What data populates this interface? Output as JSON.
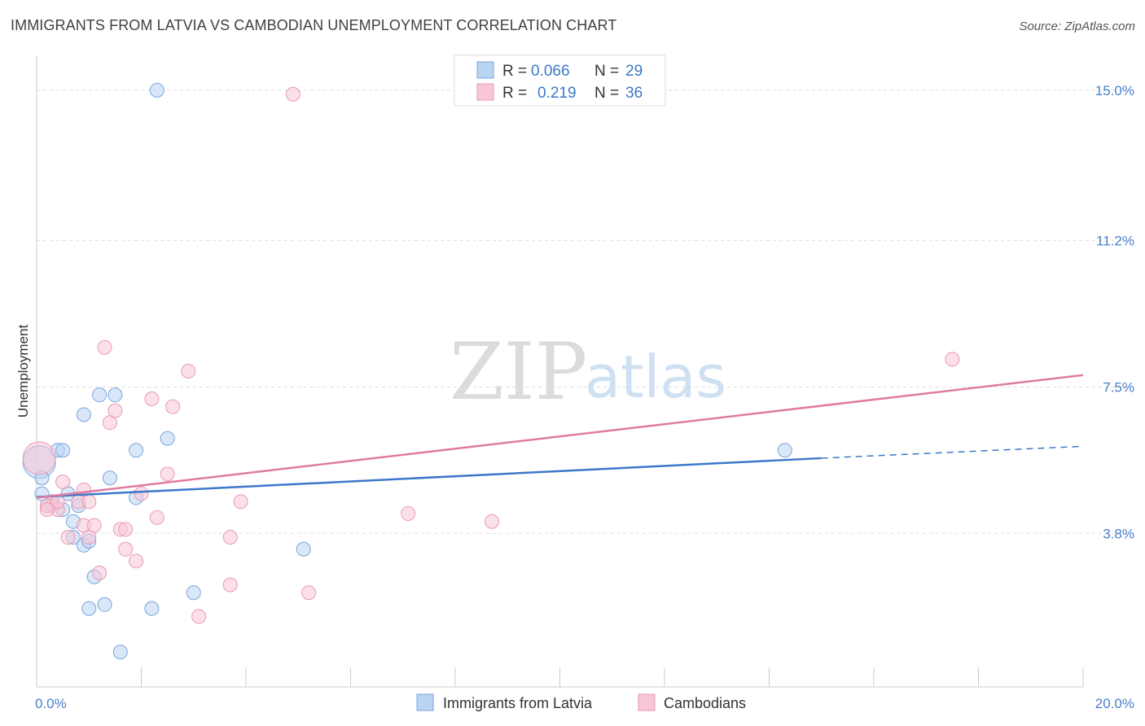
{
  "title": "IMMIGRANTS FROM LATVIA VS CAMBODIAN UNEMPLOYMENT CORRELATION CHART",
  "source": "Source: ZipAtlas.com",
  "watermark": {
    "zip": "ZIP",
    "atlas": "atlas"
  },
  "colors": {
    "blue_fill": "#b9d3f3",
    "blue_stroke": "#7aa6dc",
    "blue_line": "#3b78c9",
    "pink_fill": "#f8c7d7",
    "pink_stroke": "#e99ab4",
    "pink_line": "#e07aa1",
    "tick_text": "#4a7fcc",
    "grid": "#dddddd"
  },
  "chart_data": {
    "type": "scatter",
    "xlim": [
      0,
      20
    ],
    "ylim": [
      0,
      15.8
    ],
    "x_tick_labels": [
      "0.0%",
      "20.0%"
    ],
    "y_ticks": [
      {
        "value": 3.8,
        "label": "3.8%"
      },
      {
        "value": 7.5,
        "label": "7.5%"
      },
      {
        "value": 11.2,
        "label": "11.2%"
      },
      {
        "value": 15.0,
        "label": "15.0%"
      }
    ],
    "ylabel": "Unemployment",
    "grid": "horizontal dashed",
    "legend_position": "top-center",
    "stats": [
      {
        "r_label": "R =",
        "r": "0.066",
        "n_label": "N =",
        "n": "29"
      },
      {
        "r_label": "R =",
        "r": "0.219",
        "n_label": "N =",
        "n": "36"
      }
    ],
    "series": [
      {
        "name": "Immigrants from Latvia",
        "color": "blue",
        "points": [
          [
            0.1,
            5.2
          ],
          [
            0.3,
            4.6
          ],
          [
            0.5,
            4.4
          ],
          [
            0.1,
            4.8
          ],
          [
            0.4,
            5.9
          ],
          [
            0.9,
            6.8
          ],
          [
            1.2,
            7.3
          ],
          [
            1.5,
            7.3
          ],
          [
            0.6,
            4.8
          ],
          [
            0.8,
            4.5
          ],
          [
            0.7,
            4.1
          ],
          [
            1.4,
            5.2
          ],
          [
            1.9,
            5.9
          ],
          [
            1.9,
            4.7
          ],
          [
            2.5,
            6.2
          ],
          [
            0.7,
            3.7
          ],
          [
            0.9,
            3.5
          ],
          [
            1.0,
            3.6
          ],
          [
            1.1,
            2.7
          ],
          [
            1.3,
            2.0
          ],
          [
            1.0,
            1.9
          ],
          [
            2.2,
            1.9
          ],
          [
            3.0,
            2.3
          ],
          [
            5.1,
            3.4
          ],
          [
            1.6,
            0.8
          ],
          [
            2.3,
            15.0
          ],
          [
            14.3,
            5.9
          ],
          [
            0.2,
            4.5
          ],
          [
            0.5,
            5.9
          ]
        ],
        "big_point": [
          0.05,
          5.6
        ],
        "trend": {
          "x0": 0,
          "y0": 4.72,
          "x1": 15.0,
          "y1": 5.7,
          "dash_to_x": 20,
          "dash_to_y": 6.0
        }
      },
      {
        "name": "Cambodians",
        "color": "pink",
        "points": [
          [
            0.3,
            4.5
          ],
          [
            0.4,
            4.4
          ],
          [
            0.5,
            5.1
          ],
          [
            0.8,
            4.6
          ],
          [
            0.9,
            4.9
          ],
          [
            1.0,
            4.6
          ],
          [
            0.6,
            3.7
          ],
          [
            0.9,
            4.0
          ],
          [
            1.1,
            4.0
          ],
          [
            1.0,
            3.7
          ],
          [
            1.2,
            2.8
          ],
          [
            1.3,
            8.5
          ],
          [
            1.4,
            6.6
          ],
          [
            1.5,
            6.9
          ],
          [
            1.6,
            3.9
          ],
          [
            1.7,
            3.9
          ],
          [
            1.7,
            3.4
          ],
          [
            1.9,
            3.1
          ],
          [
            2.0,
            4.8
          ],
          [
            2.2,
            7.2
          ],
          [
            2.3,
            4.2
          ],
          [
            2.5,
            5.3
          ],
          [
            2.6,
            7.0
          ],
          [
            2.9,
            7.9
          ],
          [
            3.1,
            1.7
          ],
          [
            3.7,
            3.7
          ],
          [
            3.7,
            2.5
          ],
          [
            3.9,
            4.6
          ],
          [
            5.2,
            2.3
          ],
          [
            7.1,
            4.3
          ],
          [
            8.7,
            4.1
          ],
          [
            17.5,
            8.2
          ],
          [
            4.9,
            14.9
          ],
          [
            0.2,
            4.5
          ],
          [
            0.2,
            4.4
          ],
          [
            0.4,
            4.6
          ]
        ],
        "big_point": [
          0.05,
          5.7
        ],
        "trend": {
          "x0": 0,
          "y0": 4.7,
          "x1": 20,
          "y1": 7.8
        }
      }
    ]
  }
}
